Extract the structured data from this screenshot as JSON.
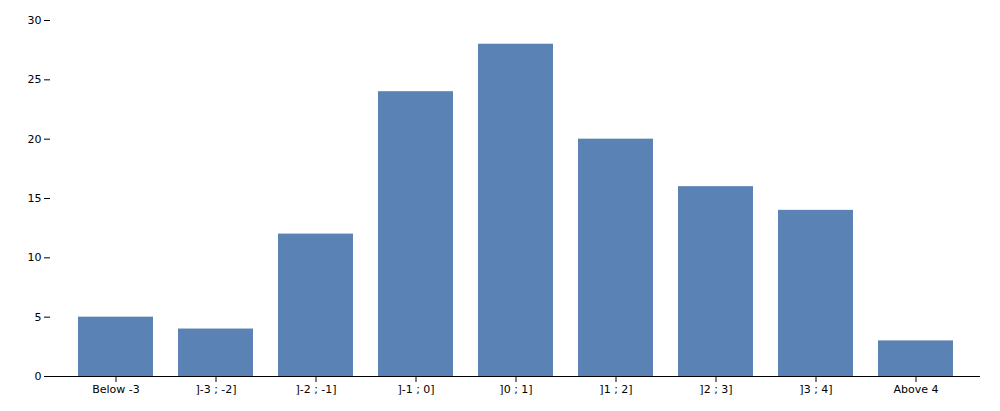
{
  "chart_data": {
    "type": "bar",
    "categories": [
      "Below -3",
      "]-3 ; -2]",
      "]-2 ; -1]",
      "]-1 ; 0]",
      "]0 ; 1]",
      "]1 ; 2]",
      "]2 ; 3]",
      "]3 ; 4]",
      "Above 4"
    ],
    "values": [
      5,
      4,
      12,
      24,
      28,
      20,
      16,
      14,
      3
    ],
    "color": "#5b82b5",
    "ylim": [
      0,
      30
    ],
    "yticks": [
      0,
      5,
      10,
      15,
      20,
      25,
      30
    ],
    "grid": false
  }
}
